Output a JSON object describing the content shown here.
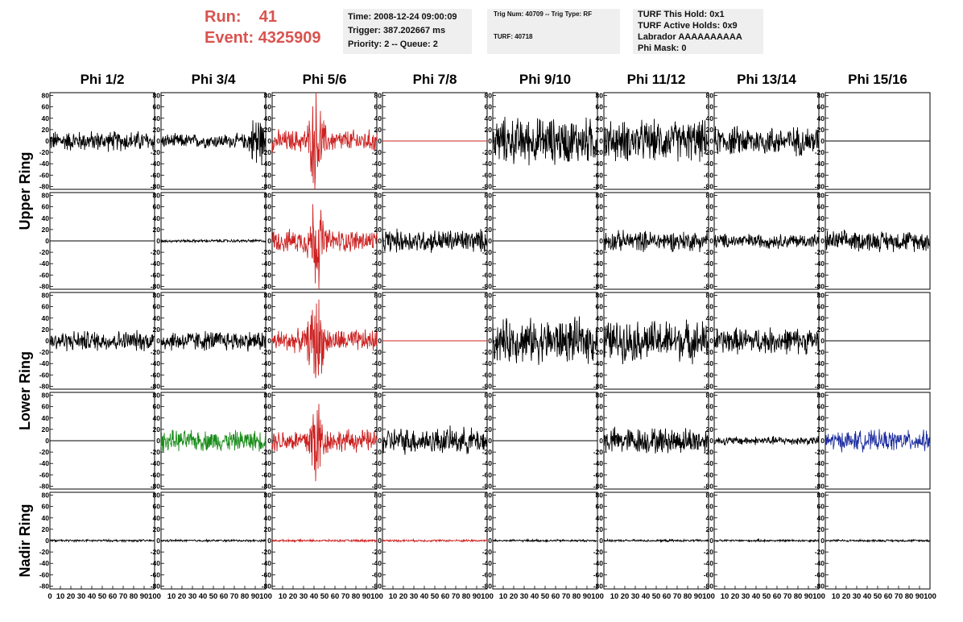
{
  "header": {
    "run_label": "Run:",
    "run_value": "41",
    "event_label": "Event:",
    "event_value": "4325909",
    "accent_color": "#d9534f"
  },
  "info_box_1": {
    "time": "Time: 2008-12-24 09:00:09",
    "trigger": "Trigger: 387.202667 ms",
    "priority": "Priority: 2 -- Queue: 2"
  },
  "info_box_2": {
    "trig": "Trig Num: 40709 -- Trig Type: RF",
    "turf": "TURF: 40718"
  },
  "info_box_3": {
    "hold": "TURF This Hold: 0x1",
    "active": "TURF Active Holds: 0x9",
    "labrador": "Labrador AAAAAAAAAA",
    "mask": "Phi Mask: 0"
  },
  "chart_data": {
    "type": "line",
    "columns": [
      "Phi 1/2",
      "Phi 3/4",
      "Phi 5/6",
      "Phi 7/8",
      "Phi 9/10",
      "Phi 11/12",
      "Phi 13/14",
      "Phi 15/16"
    ],
    "ring_labels": [
      {
        "text": "Upper Ring",
        "rows": [
          0,
          1
        ]
      },
      {
        "text": "Lower Ring",
        "rows": [
          2,
          3
        ]
      },
      {
        "text": "Nadir Ring",
        "rows": [
          4,
          4
        ]
      }
    ],
    "ylim": [
      -85,
      85
    ],
    "xlim": [
      0,
      100
    ],
    "yticks": [
      80,
      60,
      40,
      20,
      0,
      -20,
      -40,
      -60,
      -80
    ],
    "xticks": [
      0,
      10,
      20,
      30,
      40,
      50,
      60,
      70,
      80,
      90,
      100
    ],
    "colors": {
      "normal": "#000000",
      "triggered": "#cc2222",
      "green": "#1a8c1a",
      "blue": "#1f2fa0"
    },
    "panels": [
      [
        {
          "amp": 14,
          "color": "normal",
          "flat": false
        },
        {
          "amp": 14,
          "color": "normal",
          "flat": false,
          "burst_at": 92
        },
        {
          "amp": 22,
          "color": "triggered",
          "flat": false,
          "burst_at": 42
        },
        {
          "amp": 0,
          "color": "triggered",
          "flat": true
        },
        {
          "amp": 32,
          "color": "normal",
          "flat": false
        },
        {
          "amp": 28,
          "color": "normal",
          "flat": false
        },
        {
          "amp": 20,
          "color": "normal",
          "flat": false
        },
        {
          "amp": 0,
          "color": "normal",
          "flat": true
        }
      ],
      [
        {
          "amp": 0,
          "color": "normal",
          "flat": true
        },
        {
          "amp": 2,
          "color": "normal",
          "flat": false
        },
        {
          "amp": 22,
          "color": "triggered",
          "flat": false,
          "burst_at": 42
        },
        {
          "amp": 16,
          "color": "normal",
          "flat": false
        },
        {
          "amp": 0,
          "color": "normal",
          "flat": true
        },
        {
          "amp": 14,
          "color": "normal",
          "flat": false
        },
        {
          "amp": 10,
          "color": "normal",
          "flat": false
        },
        {
          "amp": 14,
          "color": "normal",
          "flat": false
        }
      ],
      [
        {
          "amp": 14,
          "color": "normal",
          "flat": false
        },
        {
          "amp": 14,
          "color": "normal",
          "flat": false
        },
        {
          "amp": 22,
          "color": "triggered",
          "flat": false,
          "burst_at": 42
        },
        {
          "amp": 0,
          "color": "triggered",
          "flat": true
        },
        {
          "amp": 30,
          "color": "normal",
          "flat": false
        },
        {
          "amp": 28,
          "color": "normal",
          "flat": false
        },
        {
          "amp": 18,
          "color": "normal",
          "flat": false
        },
        {
          "amp": 0,
          "color": "normal",
          "flat": true
        }
      ],
      [
        {
          "amp": 0,
          "color": "normal",
          "flat": true
        },
        {
          "amp": 14,
          "color": "green",
          "flat": false
        },
        {
          "amp": 22,
          "color": "triggered",
          "flat": false,
          "burst_at": 42
        },
        {
          "amp": 18,
          "color": "normal",
          "flat": false
        },
        {
          "amp": 0,
          "color": "normal",
          "flat": true
        },
        {
          "amp": 18,
          "color": "normal",
          "flat": false
        },
        {
          "amp": 6,
          "color": "normal",
          "flat": false
        },
        {
          "amp": 14,
          "color": "blue",
          "flat": false
        }
      ],
      [
        {
          "amp": 1.5,
          "color": "normal",
          "flat": false
        },
        {
          "amp": 1.5,
          "color": "normal",
          "flat": false
        },
        {
          "amp": 1.5,
          "color": "triggered",
          "flat": false
        },
        {
          "amp": 1.5,
          "color": "triggered",
          "flat": false
        },
        {
          "amp": 1.5,
          "color": "normal",
          "flat": false
        },
        {
          "amp": 1.5,
          "color": "normal",
          "flat": false
        },
        {
          "amp": 1.5,
          "color": "normal",
          "flat": false
        },
        {
          "amp": 1.5,
          "color": "normal",
          "flat": false
        }
      ]
    ]
  }
}
